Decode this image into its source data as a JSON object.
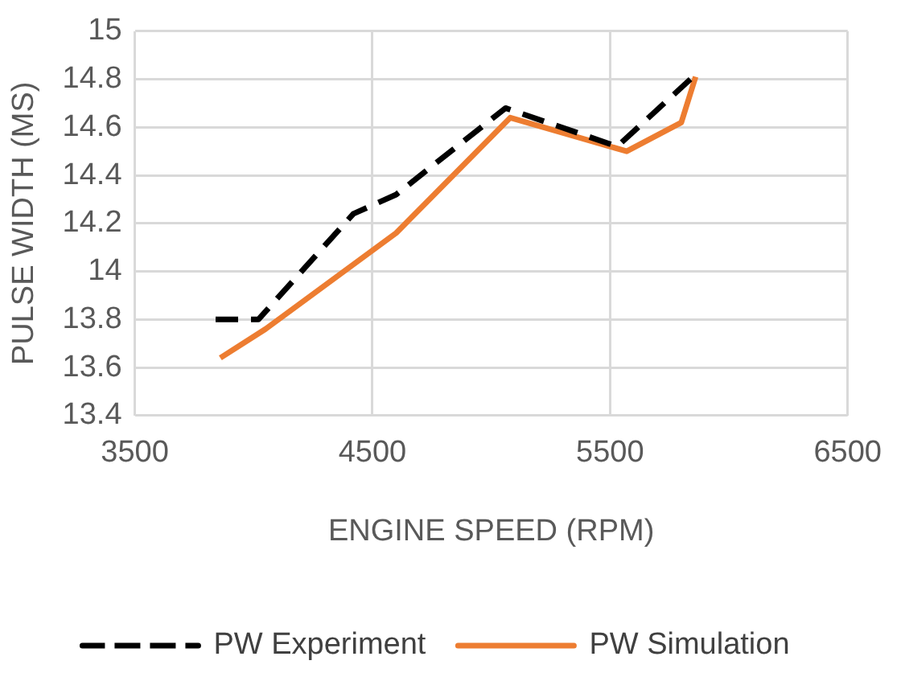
{
  "chart_data": {
    "type": "line",
    "xlabel": "ENGINE SPEED (RPM)",
    "ylabel": "PULSE WIDTH (MS)",
    "xlim": [
      3500,
      6500
    ],
    "xticks": [
      3500,
      4500,
      5500,
      6500
    ],
    "ylim": [
      13.4,
      15
    ],
    "yticks": [
      13.4,
      13.6,
      13.8,
      14,
      14.2,
      14.4,
      14.6,
      14.8,
      15
    ],
    "grid": true,
    "legend": "bottom",
    "marker": "none",
    "series": [
      {
        "name": "PW Experiment",
        "color": "#000000",
        "line_style": "dashed",
        "x": [
          3840,
          4020,
          4420,
          4600,
          5060,
          5530,
          5860
        ],
        "values": [
          13.8,
          13.8,
          14.24,
          14.32,
          14.68,
          14.52,
          14.82
        ]
      },
      {
        "name": "PW Simulation",
        "color": "#ed7d31",
        "line_style": "solid",
        "x": [
          3860,
          4050,
          4600,
          5080,
          5570,
          5800,
          5860
        ],
        "values": [
          13.64,
          13.76,
          14.16,
          14.64,
          14.5,
          14.62,
          14.81
        ]
      }
    ]
  }
}
